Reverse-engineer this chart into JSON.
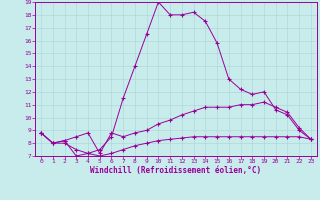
{
  "title": "",
  "xlabel": "Windchill (Refroidissement éolien,°C)",
  "ylabel": "",
  "bg_color": "#c8ecec",
  "line_color": "#990099",
  "grid_color": "#b0d8d8",
  "xlim": [
    -0.5,
    23.5
  ],
  "ylim": [
    7,
    19
  ],
  "xticks": [
    0,
    1,
    2,
    3,
    4,
    5,
    6,
    7,
    8,
    9,
    10,
    11,
    12,
    13,
    14,
    15,
    16,
    17,
    18,
    19,
    20,
    21,
    22,
    23
  ],
  "yticks": [
    7,
    8,
    9,
    10,
    11,
    12,
    13,
    14,
    15,
    16,
    17,
    18,
    19
  ],
  "line1_x": [
    0,
    1,
    2,
    3,
    4,
    5,
    6,
    7,
    8,
    9,
    10,
    11,
    12,
    13,
    14,
    15,
    16,
    17,
    18,
    19,
    20,
    21,
    22,
    23
  ],
  "line1_y": [
    8.8,
    8.0,
    8.2,
    7.0,
    7.2,
    7.5,
    8.5,
    11.5,
    14.0,
    16.5,
    19.0,
    18.0,
    18.0,
    18.2,
    17.5,
    15.8,
    13.0,
    12.2,
    11.8,
    12.0,
    10.6,
    10.2,
    9.0,
    8.3
  ],
  "line2_x": [
    0,
    1,
    2,
    3,
    4,
    5,
    6,
    7,
    8,
    9,
    10,
    11,
    12,
    13,
    14,
    15,
    16,
    17,
    18,
    19,
    20,
    21,
    22,
    23
  ],
  "line2_y": [
    8.8,
    8.0,
    8.2,
    8.5,
    8.8,
    7.2,
    8.8,
    8.5,
    8.8,
    9.0,
    9.5,
    9.8,
    10.2,
    10.5,
    10.8,
    10.8,
    10.8,
    11.0,
    11.0,
    11.2,
    10.8,
    10.4,
    9.2,
    8.3
  ],
  "line3_x": [
    0,
    1,
    2,
    3,
    4,
    5,
    6,
    7,
    8,
    9,
    10,
    11,
    12,
    13,
    14,
    15,
    16,
    17,
    18,
    19,
    20,
    21,
    22,
    23
  ],
  "line3_y": [
    8.8,
    8.0,
    8.0,
    7.5,
    7.2,
    7.0,
    7.2,
    7.5,
    7.8,
    8.0,
    8.2,
    8.3,
    8.4,
    8.5,
    8.5,
    8.5,
    8.5,
    8.5,
    8.5,
    8.5,
    8.5,
    8.5,
    8.5,
    8.3
  ]
}
